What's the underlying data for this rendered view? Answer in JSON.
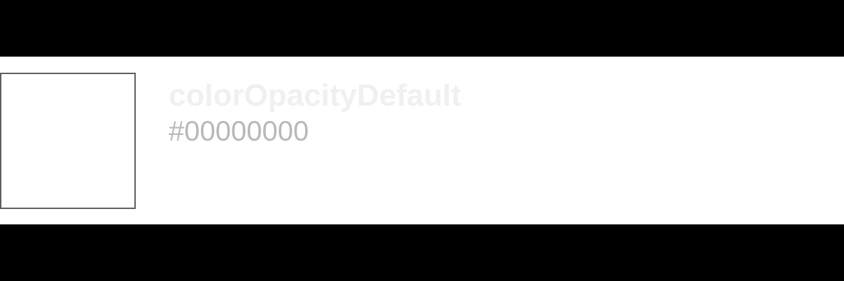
{
  "token": {
    "name": "colorOpacityDefault",
    "value": "#00000000"
  },
  "colors": {
    "background": "#000000",
    "band": "#ffffff",
    "swatch_border": "#5f5f5f",
    "swatch_fill": "#00000000",
    "name_text": "#f0f0f0",
    "value_text": "#b8b8b8"
  }
}
